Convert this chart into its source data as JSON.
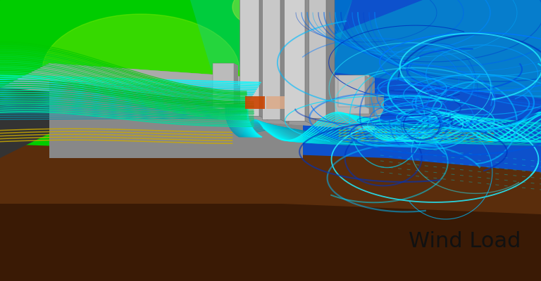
{
  "annotation": "Wind Load",
  "annotation_fontsize": 22,
  "annotation_color": "#111111",
  "figsize": [
    7.68,
    4.0
  ],
  "dpi": 100,
  "bg_green": "#00dd00",
  "bg_blue": "#0044cc",
  "bg_deep_blue": "#0022aa",
  "ground_brown": "#5a2d0c",
  "ground_dark": "#3a1a05",
  "platform_light": "#bbbbbb",
  "platform_mid": "#999999",
  "platform_dark": "#777777",
  "building_face": "#c8c8c8",
  "building_side": "#909090",
  "building_top": "#e0e0e0"
}
